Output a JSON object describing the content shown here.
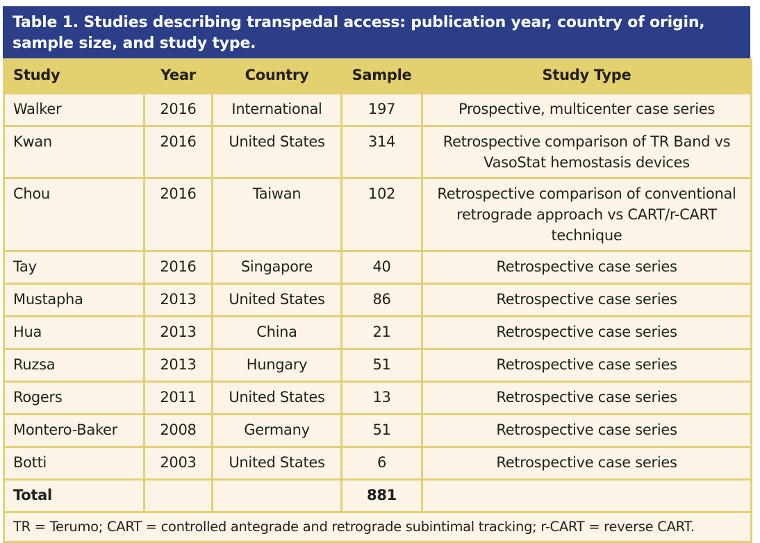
{
  "title": "Table 1. Studies describing transpedal access: publication year, country of origin, sample size, and study type.",
  "headers": {
    "study": "Study",
    "year": "Year",
    "country": "Country",
    "sample": "Sample",
    "type": "Study Type"
  },
  "rows": [
    {
      "study": "Walker",
      "year": "2016",
      "country": "International",
      "sample": "197",
      "type": "Prospective, multicenter case series"
    },
    {
      "study": "Kwan",
      "year": "2016",
      "country": "United States",
      "sample": "314",
      "type": "Retrospective comparison of TR Band vs VasoStat hemostasis devices"
    },
    {
      "study": "Chou",
      "year": "2016",
      "country": "Taiwan",
      "sample": "102",
      "type": "Retrospective comparison of conventional retrograde approach vs CART/r-CART technique"
    },
    {
      "study": "Tay",
      "year": "2016",
      "country": "Singapore",
      "sample": "40",
      "type": "Retrospective case series"
    },
    {
      "study": "Mustapha",
      "year": "2013",
      "country": "United States",
      "sample": "86",
      "type": "Retrospective case series"
    },
    {
      "study": "Hua",
      "year": "2013",
      "country": "China",
      "sample": "21",
      "type": "Retrospective case series"
    },
    {
      "study": "Ruzsa",
      "year": "2013",
      "country": "Hungary",
      "sample": "51",
      "type": "Retrospective case series"
    },
    {
      "study": "Rogers",
      "year": "2011",
      "country": "United States",
      "sample": "13",
      "type": "Retrospective case series"
    },
    {
      "study": "Montero-Baker",
      "year": "2008",
      "country": "Germany",
      "sample": "51",
      "type": "Retrospective case series"
    },
    {
      "study": "Botti",
      "year": "2003",
      "country": "United States",
      "sample": "6",
      "type": "Retrospective case series"
    }
  ],
  "total": {
    "label": "Total",
    "sample": "881"
  },
  "footnote": "TR = Terumo; CART = controlled antegrade and retrograde subintimal tracking; r-CART = reverse CART.",
  "colors": {
    "title_bg": "#2c3e88",
    "header_bg": "#e3d16f",
    "cell_bg": "#fcf5e7",
    "border": "#e4cf76"
  }
}
